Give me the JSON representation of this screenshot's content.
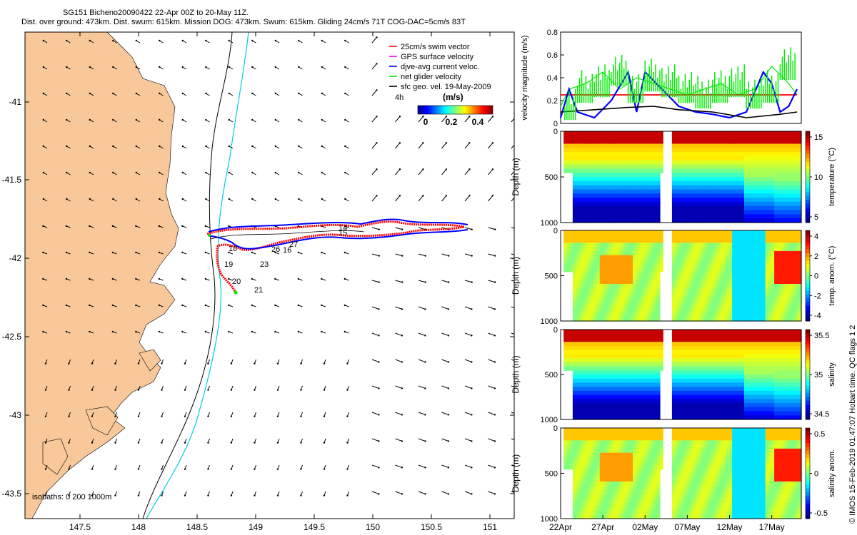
{
  "title": {
    "line1": "SG151 Bicheno20090422 22-Apr 00Z to 20-May 11Z.",
    "line2": "Dist. over ground: 473km. Dist. swum: 615km. Mission DOG: 473km. Swum: 615km. Gliding 24cm/s 71T COG-DAC=5cm/s 83T"
  },
  "colors": {
    "land": "#f8c89a",
    "swim_vector": "#ff0000",
    "gps_velocity": "#ff00ff",
    "current": "#0000ff",
    "glider_velocity": "#00ee00",
    "geo_velocity": "#000000",
    "isobath_200": "#000000",
    "isobath_1000": "#00ccdd"
  },
  "map": {
    "x_ticks": [
      "147.5",
      "148",
      "148.5",
      "149",
      "149.5",
      "150",
      "150.5",
      "151"
    ],
    "y_ticks": [
      "-41",
      "-41.5",
      "-42",
      "-42.5",
      "-43",
      "-43.5"
    ],
    "legend": [
      {
        "label": "25cm/s swim vector",
        "color": "#ff0000"
      },
      {
        "label": "GPS surface velocity",
        "color": "#ff00ff"
      },
      {
        "label": "djve-avg current veloc.",
        "color": "#0000ff"
      },
      {
        "label": "net glider velocity",
        "color": "#00ee00"
      },
      {
        "label": "sfc geo. vel. 19-May-2009",
        "color": "#000000"
      }
    ],
    "colorbar": {
      "title": "(m/s)",
      "ticks": [
        "0",
        "0.2",
        "0.4"
      ],
      "corner_label": "4h"
    },
    "isobaths_label": "isobaths: 0   200   1000m",
    "day_labels": [
      "14",
      "15",
      "16",
      "18",
      "19",
      "20",
      "21",
      "23",
      "26",
      "27"
    ]
  },
  "chart_data": [
    {
      "type": "line",
      "ylabel": "velocity magnitude (m/s)",
      "ylim": [
        0,
        0.8
      ],
      "y_ticks": [
        "0",
        "0.2",
        "0.4",
        "0.6",
        "0.8"
      ],
      "series": [
        {
          "name": "25cm/s swim vector",
          "x": [
            22,
            50
          ],
          "values": [
            0.25,
            0.25
          ]
        },
        {
          "name": "net glider velocity",
          "x": [
            22,
            23,
            25,
            27,
            29,
            31,
            33,
            35,
            37,
            39,
            41,
            43,
            45,
            47,
            49,
            50
          ],
          "values": [
            0.15,
            0.3,
            0.35,
            0.45,
            0.3,
            0.4,
            0.35,
            0.3,
            0.25,
            0.3,
            0.35,
            0.25,
            0.3,
            0.5,
            0.35,
            0.25
          ]
        },
        {
          "name": "djve-avg current veloc.",
          "x": [
            22,
            23,
            24,
            26,
            28,
            30,
            31,
            32,
            34,
            36,
            38,
            40,
            42,
            44,
            46,
            47,
            48,
            49,
            50
          ],
          "values": [
            0.05,
            0.3,
            0.1,
            0.05,
            0.2,
            0.45,
            0.1,
            0.45,
            0.3,
            0.15,
            0.1,
            0.08,
            0.05,
            0.1,
            0.45,
            0.35,
            0.1,
            0.15,
            0.3
          ]
        },
        {
          "name": "sfc geo. vel. 19-May-2009",
          "x": [
            22,
            26,
            30,
            33,
            36,
            40,
            44,
            48,
            50
          ],
          "values": [
            0.1,
            0.12,
            0.14,
            0.15,
            0.12,
            0.1,
            0.05,
            0.08,
            0.1
          ]
        }
      ]
    },
    {
      "type": "heatmap",
      "ylabel": "Depth (m)",
      "colorbar_label": "temperature (°C)",
      "y_ticks": [
        "0",
        "500",
        "1000"
      ],
      "cb_ticks": [
        "15",
        "10",
        "5"
      ]
    },
    {
      "type": "heatmap",
      "ylabel": "Depth (m)",
      "colorbar_label": "temp. anom. (°C)",
      "y_ticks": [
        "0",
        "500",
        "1000"
      ],
      "cb_ticks": [
        "4",
        "2",
        "0",
        "-2",
        "-4"
      ]
    },
    {
      "type": "heatmap",
      "ylabel": "Depth (m)",
      "colorbar_label": "salinity",
      "y_ticks": [
        "0",
        "500",
        "1000"
      ],
      "cb_ticks": [
        "35.5",
        "35",
        "34.5"
      ]
    },
    {
      "type": "heatmap",
      "ylabel": "Depth (m)",
      "colorbar_label": "salinity anom.",
      "y_ticks": [
        "0",
        "500",
        "1000"
      ],
      "cb_ticks": [
        "0.5",
        "0",
        "-0.5"
      ]
    }
  ],
  "time_axis": {
    "ticks": [
      "22Apr",
      "27Apr",
      "02May",
      "07May",
      "12May",
      "17May"
    ]
  },
  "footer": "© IMOS 15-Feb-2019 01:47:07 Hobart time. QC flags 1  2"
}
